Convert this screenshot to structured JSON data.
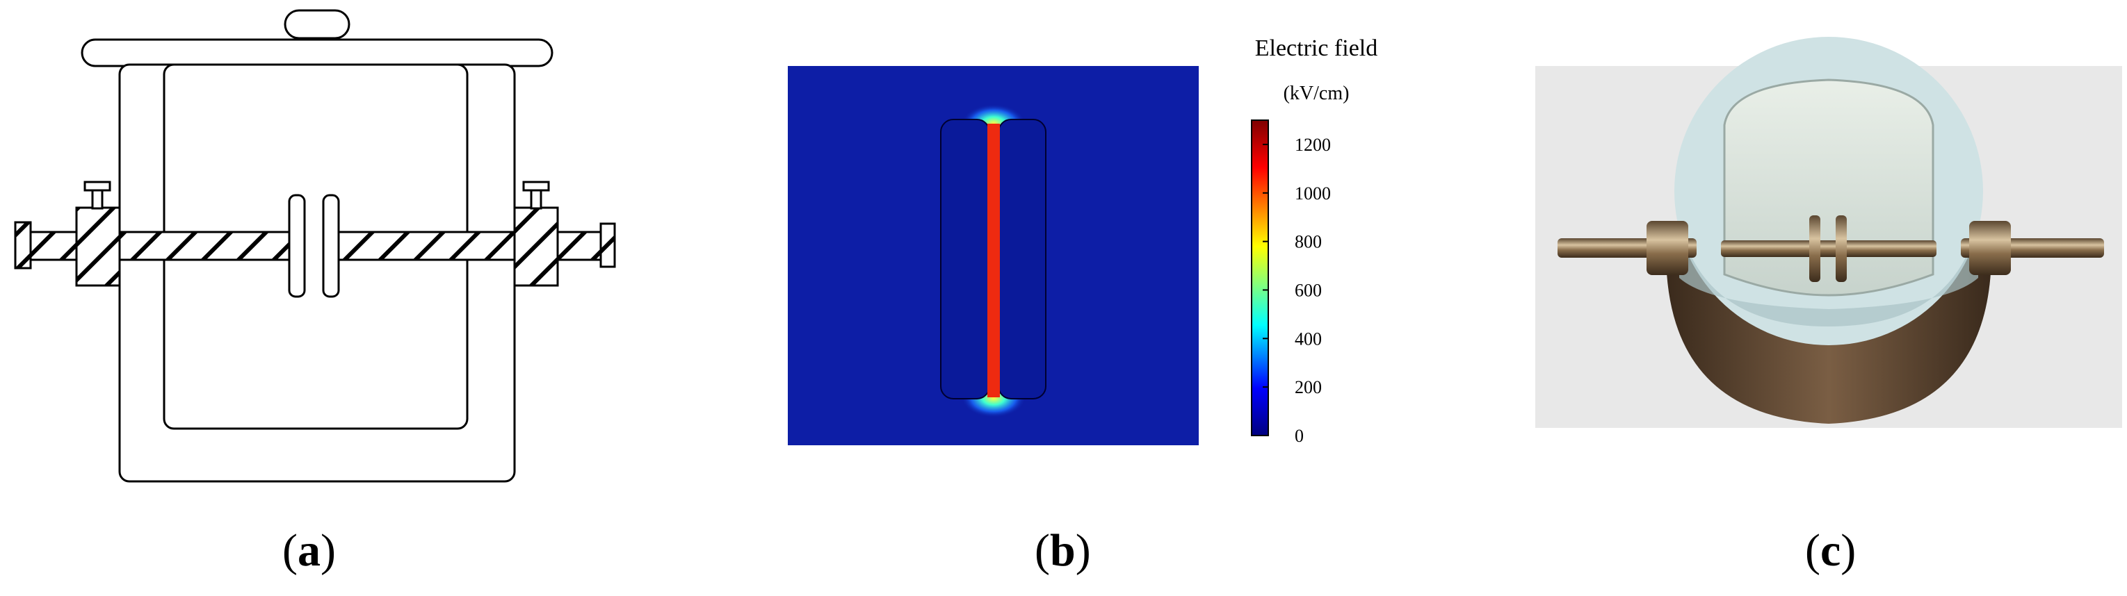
{
  "panels": {
    "a": {
      "label_open": "(",
      "label_letter": "a",
      "label_close": ")"
    },
    "b": {
      "label_open": "(",
      "label_letter": "b",
      "label_close": ")",
      "colorbar": {
        "title": "Electric field",
        "unit": "(kV/cm)",
        "ticks": [
          "1200",
          "1000",
          "800",
          "600",
          "400",
          "200",
          "0"
        ],
        "range": [
          0,
          1300
        ],
        "colors": [
          "#00007f",
          "#0000ff",
          "#00ffff",
          "#ffff00",
          "#ff0000",
          "#7f0000"
        ]
      },
      "field_colors": {
        "background": "#0d1ea6",
        "electrode": "#0a1a9a",
        "gap": "#ee2a10"
      }
    },
    "c": {
      "label_open": "(",
      "label_letter": "c",
      "label_close": ")"
    }
  }
}
